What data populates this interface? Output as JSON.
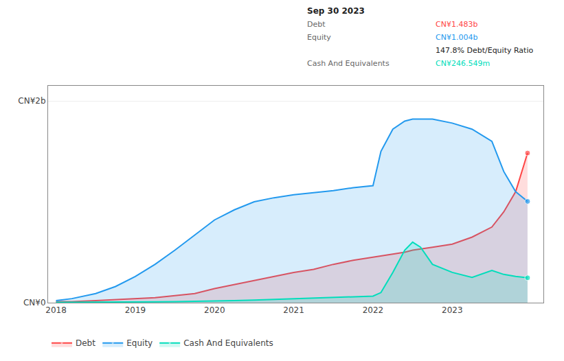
{
  "chart_data": {
    "type": "area",
    "stacked": false,
    "x": [
      2018.0,
      2018.2,
      2018.5,
      2018.75,
      2019.0,
      2019.25,
      2019.5,
      2019.75,
      2020.0,
      2020.25,
      2020.5,
      2020.75,
      2021.0,
      2021.25,
      2021.5,
      2021.75,
      2022.0,
      2022.1,
      2022.25,
      2022.4,
      2022.5,
      2022.6,
      2022.75,
      2023.0,
      2023.25,
      2023.5,
      2023.65,
      2023.8,
      2023.95
    ],
    "series": [
      {
        "name": "Debt",
        "color": "#ff4444",
        "values": [
          0.01,
          0.01,
          0.02,
          0.03,
          0.04,
          0.05,
          0.07,
          0.09,
          0.14,
          0.18,
          0.22,
          0.26,
          0.3,
          0.33,
          0.38,
          0.42,
          0.45,
          0.46,
          0.48,
          0.5,
          0.52,
          0.53,
          0.55,
          0.58,
          0.65,
          0.75,
          0.9,
          1.1,
          1.483
        ]
      },
      {
        "name": "Equity",
        "color": "#2299ee",
        "values": [
          0.02,
          0.04,
          0.09,
          0.16,
          0.26,
          0.38,
          0.52,
          0.67,
          0.82,
          0.92,
          1.0,
          1.04,
          1.07,
          1.09,
          1.11,
          1.14,
          1.16,
          1.5,
          1.72,
          1.8,
          1.82,
          1.82,
          1.82,
          1.78,
          1.72,
          1.6,
          1.3,
          1.1,
          1.004
        ]
      },
      {
        "name": "Cash And Equivalents",
        "color": "#00ddbb",
        "values": [
          0.004,
          0.004,
          0.005,
          0.006,
          0.007,
          0.009,
          0.011,
          0.013,
          0.016,
          0.02,
          0.025,
          0.032,
          0.04,
          0.048,
          0.055,
          0.06,
          0.065,
          0.1,
          0.3,
          0.52,
          0.6,
          0.55,
          0.38,
          0.3,
          0.25,
          0.32,
          0.28,
          0.26,
          0.2465
        ]
      }
    ],
    "xlim": [
      2017.9,
      2024.15
    ],
    "xticks": [
      2018,
      2019,
      2020,
      2021,
      2022,
      2023
    ],
    "ylim": [
      0,
      2.15
    ],
    "yticks": [
      {
        "value": 0,
        "label": "CN¥0"
      },
      {
        "value": 2.0,
        "label": "CN¥2b"
      }
    ],
    "grid": "y",
    "legend": "bottom",
    "annotations": [
      {
        "text": "Sep 30 2023"
      },
      {
        "label": "Debt",
        "text": "CN¥1.483b",
        "color": "#ff4444"
      },
      {
        "label": "Equity",
        "text": "CN¥1.004b",
        "color": "#2299ee"
      },
      {
        "text": "147.8% Debt/Equity Ratio"
      },
      {
        "label": "Cash And Equivalents",
        "text": "CN¥246.549m",
        "color": "#00ddbb"
      }
    ]
  }
}
